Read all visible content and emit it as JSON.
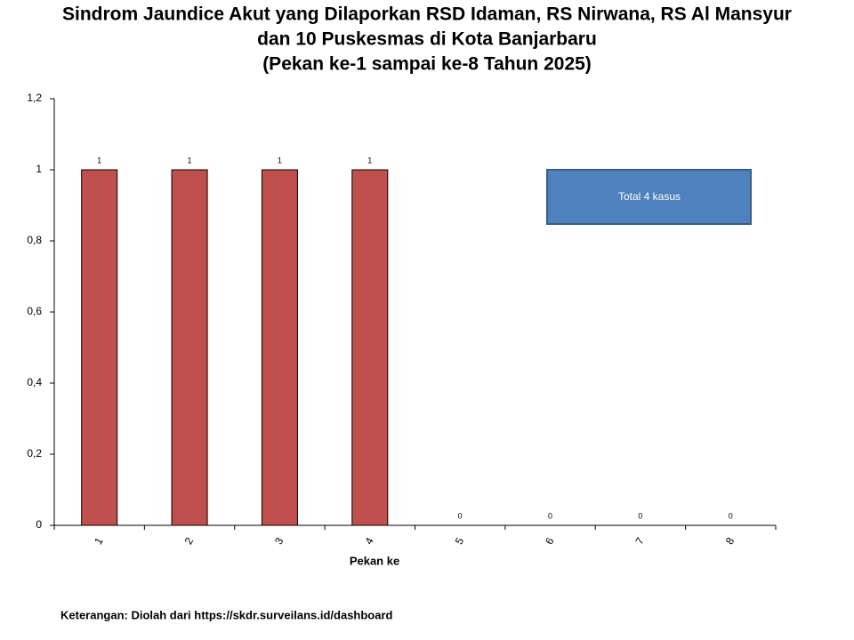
{
  "chart_data": {
    "type": "bar",
    "title": [
      "Sindrom Jaundice Akut yang Dilaporkan RSD Idaman, RS Nirwana, RS Al Mansyur",
      "dan 10 Puskesmas di Kota Banjarbaru",
      "(Pekan ke-1 sampai ke-8 Tahun 2025)"
    ],
    "categories": [
      "1",
      "2",
      "3",
      "4",
      "5",
      "6",
      "7",
      "8"
    ],
    "values": [
      1,
      1,
      1,
      1,
      0,
      0,
      0,
      0
    ],
    "color": "#c0504d",
    "ylim": [
      0,
      1.2
    ],
    "yticks": [
      0,
      {
        "value": 0.2,
        "label": "0,2"
      },
      {
        "value": 0.4,
        "label": "0,4"
      },
      {
        "value": 0.6,
        "label": "0,6"
      },
      {
        "value": 0.8,
        "label": "0,8"
      },
      1,
      {
        "value": 1.2,
        "label": "1,2"
      }
    ],
    "grid": false,
    "xlabel": "Pekan ke",
    "annotation": "Total 4 kasus",
    "note": "Keterangan: Diolah dari https://skdr.surveilans.id/dashboard"
  }
}
